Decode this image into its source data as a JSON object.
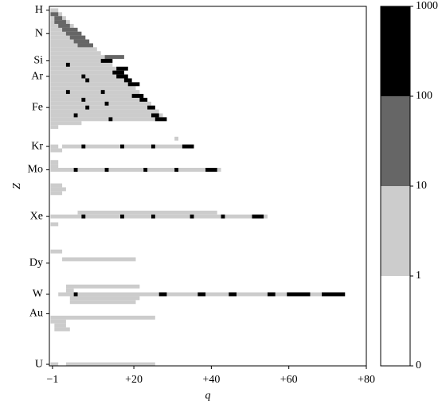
{
  "chart_data": {
    "type": "heatmap",
    "x_label": "q",
    "y_label": "Z",
    "xlim": [
      -1.8,
      80
    ],
    "ylim": [
      0,
      92.4
    ],
    "y_inverted": true,
    "xticks": [
      {
        "value": -1,
        "label": "−1"
      },
      {
        "value": 20,
        "label": "+20"
      },
      {
        "value": 40,
        "label": "+40"
      },
      {
        "value": 60,
        "label": "+60"
      },
      {
        "value": 80,
        "label": "+80"
      }
    ],
    "yticks": [
      {
        "value": 1,
        "label": "H"
      },
      {
        "value": 7,
        "label": "N"
      },
      {
        "value": 14,
        "label": "Si"
      },
      {
        "value": 18,
        "label": "Ar"
      },
      {
        "value": 26,
        "label": "Fe"
      },
      {
        "value": 36,
        "label": "Kr"
      },
      {
        "value": 42,
        "label": "Mo"
      },
      {
        "value": 54,
        "label": "Xe"
      },
      {
        "value": 66,
        "label": "Dy"
      },
      {
        "value": 74,
        "label": "W"
      },
      {
        "value": 79,
        "label": "Au"
      },
      {
        "value": 92,
        "label": "U"
      }
    ],
    "colorbar": {
      "levels": [
        0,
        1,
        10,
        100,
        1000
      ],
      "colors": [
        "#ffffff",
        "#cccccc",
        "#666666",
        "#000000"
      ]
    },
    "cells": [
      [
        1,
        -1,
        0,
        5
      ],
      [
        2,
        -1,
        1,
        5
      ],
      [
        3,
        -1,
        2,
        5
      ],
      [
        4,
        -1,
        3,
        5
      ],
      [
        5,
        -1,
        4,
        5
      ],
      [
        6,
        -1,
        5,
        5
      ],
      [
        7,
        -1,
        6,
        5
      ],
      [
        8,
        -1,
        7,
        5
      ],
      [
        9,
        -1,
        8,
        5
      ],
      [
        10,
        -1,
        9,
        5
      ],
      [
        11,
        -1,
        10,
        5
      ],
      [
        12,
        -1,
        11,
        5
      ],
      [
        13,
        -1,
        12,
        5
      ],
      [
        14,
        -1,
        13,
        5
      ],
      [
        15,
        -1,
        14,
        5
      ],
      [
        16,
        -1,
        15,
        5
      ],
      [
        17,
        -1,
        16,
        5
      ],
      [
        18,
        -1,
        17,
        5
      ],
      [
        19,
        -1,
        18,
        5
      ],
      [
        20,
        -1,
        19,
        5
      ],
      [
        21,
        -1,
        20,
        5
      ],
      [
        22,
        -1,
        21,
        5
      ],
      [
        23,
        -1,
        22,
        5
      ],
      [
        24,
        -1,
        23,
        5
      ],
      [
        25,
        -1,
        24,
        5
      ],
      [
        26,
        -1,
        25,
        5
      ],
      [
        27,
        -1,
        26,
        5
      ],
      [
        28,
        -1,
        27,
        5
      ],
      [
        29,
        -1,
        28,
        5
      ],
      [
        2,
        -1,
        0,
        50
      ],
      [
        3,
        0,
        1,
        50
      ],
      [
        4,
        0,
        2,
        50
      ],
      [
        5,
        1,
        3,
        50
      ],
      [
        6,
        2,
        5,
        50
      ],
      [
        7,
        3,
        6,
        50
      ],
      [
        8,
        4,
        7,
        50
      ],
      [
        9,
        5,
        8,
        50
      ],
      [
        10,
        6,
        9,
        50
      ],
      [
        13,
        13,
        17,
        50
      ],
      [
        15,
        3,
        3,
        500
      ],
      [
        14,
        12,
        14,
        500
      ],
      [
        16,
        16,
        18,
        500
      ],
      [
        17,
        15,
        17,
        500
      ],
      [
        18,
        7,
        7,
        500
      ],
      [
        18,
        16,
        18,
        500
      ],
      [
        19,
        8,
        8,
        500
      ],
      [
        19,
        18,
        19,
        500
      ],
      [
        20,
        19,
        21,
        500
      ],
      [
        22,
        3,
        3,
        500
      ],
      [
        22,
        12,
        12,
        500
      ],
      [
        23,
        20,
        22,
        500
      ],
      [
        24,
        7,
        7,
        500
      ],
      [
        24,
        22,
        23,
        500
      ],
      [
        25,
        13,
        13,
        500
      ],
      [
        26,
        8,
        8,
        500
      ],
      [
        26,
        24,
        25,
        500
      ],
      [
        28,
        5,
        5,
        500
      ],
      [
        28,
        25,
        26,
        500
      ],
      [
        29,
        14,
        14,
        500
      ],
      [
        29,
        26,
        28,
        500
      ],
      [
        30,
        -1,
        6,
        5
      ],
      [
        31,
        -1,
        0,
        5
      ],
      [
        34,
        31,
        31,
        5
      ],
      [
        36,
        -1,
        0,
        5
      ],
      [
        36,
        2,
        35,
        5
      ],
      [
        37,
        -1,
        1,
        5
      ],
      [
        36,
        7,
        7,
        500
      ],
      [
        36,
        17,
        17,
        500
      ],
      [
        36,
        25,
        25,
        500
      ],
      [
        36,
        33,
        35,
        500
      ],
      [
        40,
        -1,
        0,
        5
      ],
      [
        41,
        -1,
        0,
        5
      ],
      [
        42,
        -1,
        42,
        5
      ],
      [
        42,
        5,
        5,
        500
      ],
      [
        42,
        13,
        13,
        500
      ],
      [
        42,
        23,
        23,
        500
      ],
      [
        42,
        31,
        31,
        500
      ],
      [
        42,
        39,
        41,
        500
      ],
      [
        46,
        -1,
        1,
        5
      ],
      [
        47,
        -1,
        2,
        5
      ],
      [
        48,
        -1,
        1,
        5
      ],
      [
        53,
        6,
        41,
        5
      ],
      [
        54,
        -1,
        54,
        5
      ],
      [
        54,
        7,
        7,
        500
      ],
      [
        54,
        17,
        17,
        500
      ],
      [
        54,
        25,
        25,
        500
      ],
      [
        54,
        35,
        35,
        500
      ],
      [
        54,
        43,
        43,
        500
      ],
      [
        54,
        51,
        53,
        500
      ],
      [
        56,
        -1,
        0,
        5
      ],
      [
        63,
        -1,
        1,
        5
      ],
      [
        65,
        2,
        20,
        5
      ],
      [
        72,
        3,
        21,
        5
      ],
      [
        73,
        3,
        4,
        5
      ],
      [
        74,
        1,
        74,
        5
      ],
      [
        75,
        4,
        21,
        5
      ],
      [
        76,
        4,
        20,
        5
      ],
      [
        74,
        5,
        5,
        500
      ],
      [
        74,
        27,
        28,
        500
      ],
      [
        74,
        37,
        38,
        500
      ],
      [
        74,
        45,
        46,
        500
      ],
      [
        74,
        55,
        56,
        500
      ],
      [
        74,
        60,
        65,
        500
      ],
      [
        74,
        69,
        74,
        500
      ],
      [
        80,
        -1,
        25,
        5
      ],
      [
        81,
        -1,
        2,
        5
      ],
      [
        82,
        0,
        2,
        5
      ],
      [
        83,
        0,
        3,
        5
      ],
      [
        92,
        -1,
        0,
        5
      ],
      [
        92,
        3,
        25,
        5
      ]
    ]
  }
}
